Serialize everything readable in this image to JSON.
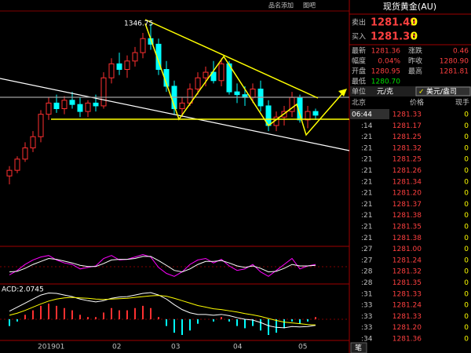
{
  "toolbar": {
    "items": [
      "品名添加",
      "图吧"
    ]
  },
  "chart": {
    "peak_label": "1346.75",
    "macd_label": "ACD:2.0745",
    "x_labels": [
      "201901",
      "02",
      "03",
      "04",
      "05"
    ],
    "candles": [
      [
        1238,
        1245,
        1232,
        1242
      ],
      [
        1242,
        1252,
        1240,
        1250
      ],
      [
        1250,
        1262,
        1248,
        1258
      ],
      [
        1258,
        1270,
        1255,
        1266
      ],
      [
        1266,
        1285,
        1262,
        1282
      ],
      [
        1282,
        1294,
        1278,
        1290
      ],
      [
        1290,
        1296,
        1283,
        1286
      ],
      [
        1286,
        1295,
        1282,
        1292
      ],
      [
        1292,
        1298,
        1286,
        1289
      ],
      [
        1289,
        1294,
        1280,
        1284
      ],
      [
        1284,
        1292,
        1280,
        1290
      ],
      [
        1290,
        1296,
        1284,
        1288
      ],
      [
        1288,
        1312,
        1286,
        1308
      ],
      [
        1308,
        1322,
        1304,
        1318
      ],
      [
        1318,
        1326,
        1310,
        1314
      ],
      [
        1314,
        1324,
        1308,
        1320
      ],
      [
        1320,
        1330,
        1316,
        1326
      ],
      [
        1326,
        1340,
        1322,
        1336
      ],
      [
        1336,
        1346.75,
        1328,
        1332
      ],
      [
        1332,
        1336,
        1310,
        1314
      ],
      [
        1314,
        1320,
        1298,
        1302
      ],
      [
        1302,
        1306,
        1282,
        1286
      ],
      [
        1286,
        1294,
        1280,
        1290
      ],
      [
        1290,
        1304,
        1288,
        1300
      ],
      [
        1300,
        1312,
        1296,
        1308
      ],
      [
        1308,
        1316,
        1302,
        1312
      ],
      [
        1312,
        1320,
        1304,
        1306
      ],
      [
        1306,
        1322,
        1302,
        1318
      ],
      [
        1318,
        1320,
        1296,
        1298
      ],
      [
        1298,
        1304,
        1290,
        1296
      ],
      [
        1296,
        1302,
        1288,
        1294
      ],
      [
        1294,
        1304,
        1290,
        1300
      ],
      [
        1300,
        1306,
        1284,
        1288
      ],
      [
        1288,
        1292,
        1270,
        1274
      ],
      [
        1274,
        1284,
        1270,
        1280
      ],
      [
        1280,
        1288,
        1274,
        1284
      ],
      [
        1284,
        1298,
        1280,
        1294
      ],
      [
        1294,
        1296,
        1276,
        1278
      ],
      [
        1278,
        1288,
        1272,
        1284
      ],
      [
        1284,
        1286,
        1278,
        1281.36
      ]
    ],
    "k": [
      20,
      35,
      55,
      70,
      80,
      85,
      70,
      60,
      55,
      40,
      45,
      50,
      75,
      85,
      70,
      72,
      80,
      88,
      80,
      45,
      25,
      15,
      30,
      55,
      70,
      75,
      60,
      72,
      50,
      35,
      40,
      55,
      30,
      15,
      35,
      55,
      75,
      40,
      50,
      55
    ],
    "d": [
      30,
      32,
      42,
      55,
      65,
      75,
      72,
      66,
      60,
      52,
      48,
      48,
      58,
      70,
      72,
      72,
      75,
      82,
      82,
      68,
      52,
      35,
      30,
      40,
      55,
      65,
      65,
      68,
      60,
      50,
      45,
      50,
      42,
      30,
      32,
      42,
      55,
      50,
      50,
      52
    ],
    "macd_hist": [
      -0.3,
      -0.1,
      0.2,
      0.4,
      0.6,
      0.7,
      0.6,
      0.5,
      0.4,
      0.2,
      0.1,
      0.1,
      0.3,
      0.5,
      0.4,
      0.4,
      0.5,
      0.6,
      0.5,
      0.1,
      -0.3,
      -0.6,
      -0.7,
      -0.5,
      -0.2,
      0,
      -0.1,
      0.1,
      -0.1,
      -0.3,
      -0.4,
      -0.3,
      -0.5,
      -0.7,
      -0.6,
      -0.4,
      -0.1,
      -0.2,
      -0.1,
      0.1
    ],
    "dif": [
      2,
      3,
      4,
      5,
      6,
      6.5,
      6.4,
      6,
      5.6,
      5,
      4.6,
      4.3,
      4.6,
      5.2,
      5.5,
      5.6,
      6,
      6.4,
      6.6,
      6,
      5,
      3.6,
      2.4,
      1.6,
      1.2,
      1.2,
      1,
      1.2,
      0.9,
      0.4,
      0,
      -0.2,
      -0.8,
      -1.6,
      -2,
      -2.1,
      -1.8,
      -1.9,
      -1.8,
      -1.5
    ],
    "dea": [
      1,
      1.5,
      2.2,
      3,
      3.8,
      4.5,
      5,
      5.3,
      5.4,
      5.3,
      5.2,
      5,
      4.9,
      5,
      5.1,
      5.2,
      5.4,
      5.6,
      5.8,
      5.9,
      5.7,
      5.2,
      4.6,
      4,
      3.4,
      3,
      2.6,
      2.4,
      2.1,
      1.8,
      1.4,
      1.1,
      0.7,
      0.2,
      -0.3,
      -0.7,
      -0.9,
      -1.1,
      -1.3,
      -1.4
    ]
  },
  "quote": {
    "title": "现货黄金(AU)",
    "sell": {
      "label": "卖出",
      "price": "1281.49",
      "qty": "0"
    },
    "buy": {
      "label": "买入",
      "price": "1281.36",
      "qty": "0"
    },
    "stats": [
      [
        "最新",
        "1281.36",
        "涨跌",
        "0.46"
      ],
      [
        "幅度",
        "0.04%",
        "昨收",
        "1280.90"
      ],
      [
        "开盘",
        "1280.95",
        "最高",
        "1281.81"
      ],
      [
        "最低",
        "1280.70"
      ]
    ],
    "unit_label": "单位",
    "unit_options": [
      "元/克",
      "美元/盎司"
    ],
    "columns": [
      "北京",
      "价格",
      "现手"
    ],
    "ticks": [
      [
        "06:44",
        "1281.33",
        "0"
      ],
      [
        ":14",
        "1281.17",
        "0"
      ],
      [
        ":21",
        "1281.25",
        "0"
      ],
      [
        ":21",
        "1281.32",
        "0"
      ],
      [
        ":21",
        "1281.25",
        "0"
      ],
      [
        ":21",
        "1281.26",
        "0"
      ],
      [
        ":21",
        "1281.34",
        "0"
      ],
      [
        ":21",
        "1281.20",
        "0"
      ],
      [
        ":21",
        "1281.37",
        "0"
      ],
      [
        ":21",
        "1281.38",
        "0"
      ],
      [
        ":21",
        "1281.35",
        "0"
      ],
      [
        ":21",
        "1281.38",
        "0"
      ],
      [
        ":27",
        "1281.00",
        "0"
      ],
      [
        ":27",
        "1281.24",
        "0"
      ],
      [
        ":28",
        "1281.32",
        "0"
      ],
      [
        ":28",
        "1281.35",
        "0"
      ],
      [
        ":31",
        "1281.33",
        "0"
      ],
      [
        ":33",
        "1281.24",
        "0"
      ],
      [
        ":33",
        "1281.33",
        "0"
      ],
      [
        ":33",
        "1281.20",
        "0"
      ],
      [
        ":34",
        "1281.36",
        "0"
      ]
    ],
    "tab": "笔"
  }
}
